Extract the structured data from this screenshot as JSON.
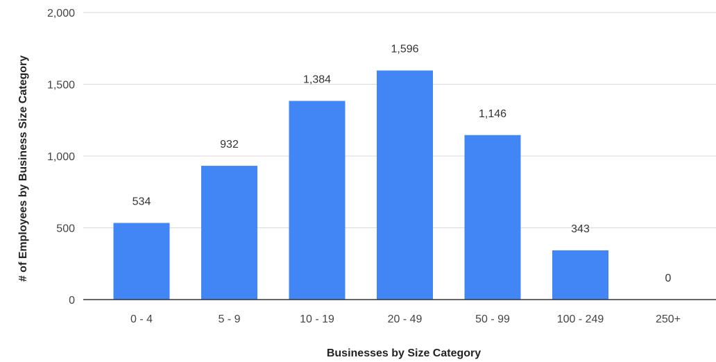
{
  "chart_data": {
    "type": "bar",
    "categories": [
      "0 - 4",
      "5 - 9",
      "10 - 19",
      "20 - 49",
      "50 - 99",
      "100 - 249",
      "250+"
    ],
    "values": [
      534,
      932,
      1384,
      1596,
      1146,
      343,
      0
    ],
    "data_labels": [
      "534",
      "932",
      "1,384",
      "1,596",
      "1,146",
      "343",
      "0"
    ],
    "xlabel": "Businesses by Size Category",
    "ylabel": "# of Employees by Business Size Category",
    "ylim": [
      0,
      2000
    ],
    "yticks": [
      0,
      500,
      1000,
      1500,
      2000
    ],
    "ytick_labels": [
      "0",
      "500",
      "1,000",
      "1,500",
      "2,000"
    ],
    "grid": true,
    "bar_color": "#4285f4",
    "grid_color": "#d9d9d9",
    "axis_color": "#333333"
  }
}
